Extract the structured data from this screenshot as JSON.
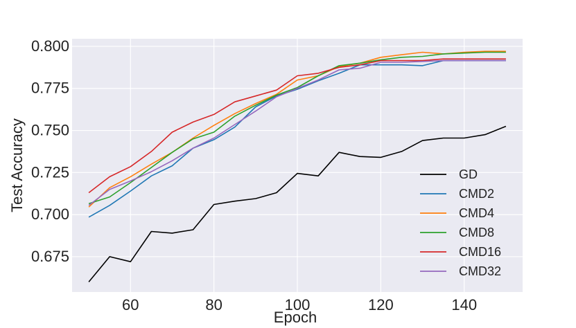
{
  "chart_data": {
    "type": "line",
    "xlabel": "Epoch",
    "ylabel": "Test Accuracy",
    "xlim": [
      46,
      154
    ],
    "ylim": [
      0.654,
      0.8045
    ],
    "xticks": [
      60,
      80,
      100,
      120,
      140
    ],
    "yticks": [
      0.675,
      0.7,
      0.725,
      0.75,
      0.775,
      0.8
    ],
    "ytick_labels": [
      "0.675",
      "0.700",
      "0.725",
      "0.750",
      "0.775",
      "0.800"
    ],
    "grid": true,
    "legend_position": "lower-right",
    "background": "#EAEAF2",
    "x": [
      50,
      55,
      60,
      65,
      70,
      75,
      80,
      85,
      90,
      95,
      100,
      105,
      110,
      115,
      120,
      125,
      130,
      135,
      140,
      145,
      150
    ],
    "series": [
      {
        "name": "GD",
        "color": "#000000",
        "values": [
          0.66,
          0.675,
          0.672,
          0.69,
          0.689,
          0.691,
          0.706,
          0.708,
          0.7095,
          0.713,
          0.7245,
          0.723,
          0.737,
          0.7345,
          0.734,
          0.7375,
          0.744,
          0.7455,
          0.7455,
          0.7475,
          0.7525
        ]
      },
      {
        "name": "CMD2",
        "color": "#1F77B4",
        "values": [
          0.6985,
          0.7055,
          0.714,
          0.723,
          0.729,
          0.7395,
          0.7445,
          0.752,
          0.764,
          0.7705,
          0.7745,
          0.7795,
          0.784,
          0.789,
          0.789,
          0.789,
          0.7885,
          0.7915,
          0.7915,
          0.7915,
          0.7915
        ]
      },
      {
        "name": "CMD4",
        "color": "#FF7F0E",
        "values": [
          0.7045,
          0.716,
          0.7225,
          0.73,
          0.737,
          0.7455,
          0.753,
          0.76,
          0.766,
          0.7715,
          0.78,
          0.7825,
          0.788,
          0.79,
          0.7935,
          0.795,
          0.7965,
          0.7955,
          0.7965,
          0.797,
          0.797
        ]
      },
      {
        "name": "CMD8",
        "color": "#2CA02C",
        "values": [
          0.7065,
          0.7105,
          0.719,
          0.728,
          0.737,
          0.745,
          0.749,
          0.7585,
          0.765,
          0.771,
          0.7755,
          0.7825,
          0.7885,
          0.79,
          0.792,
          0.7935,
          0.794,
          0.7955,
          0.796,
          0.7965,
          0.7965
        ]
      },
      {
        "name": "CMD16",
        "color": "#D62728",
        "values": [
          0.713,
          0.7225,
          0.7285,
          0.7375,
          0.749,
          0.755,
          0.7595,
          0.767,
          0.7705,
          0.774,
          0.7825,
          0.784,
          0.7875,
          0.789,
          0.7915,
          0.7915,
          0.7915,
          0.7925,
          0.7925,
          0.7925,
          0.7925
        ]
      },
      {
        "name": "CMD32",
        "color": "#9467BD",
        "values": [
          0.7055,
          0.715,
          0.72,
          0.7255,
          0.732,
          0.7395,
          0.7455,
          0.7535,
          0.7615,
          0.77,
          0.775,
          0.78,
          0.786,
          0.787,
          0.7905,
          0.7905,
          0.791,
          0.7915,
          0.7915,
          0.7915,
          0.7915
        ]
      }
    ]
  }
}
